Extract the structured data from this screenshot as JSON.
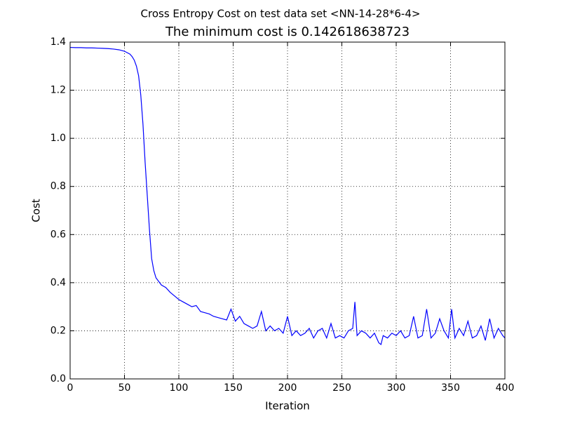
{
  "chart_data": {
    "type": "line",
    "suptitle": "Cross Entropy Cost on test data set <NN-14-28*6-4>",
    "title": "The minimum cost is 0.142618638723",
    "xlabel": "Iteration",
    "ylabel": "Cost",
    "color": "#0000ff",
    "grid": true,
    "xlim": [
      0,
      400
    ],
    "xticks": [
      0,
      50,
      100,
      150,
      200,
      250,
      300,
      350,
      400
    ],
    "ylim": [
      0,
      1.4
    ],
    "yticks": [
      {
        "value": 0,
        "label": "0.0"
      },
      0.2,
      0.4,
      0.6,
      0.8,
      {
        "value": 1,
        "label": "1.0"
      },
      1.2,
      1.4
    ],
    "x": [
      0,
      5,
      10,
      15,
      20,
      25,
      30,
      35,
      40,
      45,
      50,
      55,
      57,
      59,
      61,
      63,
      65,
      67,
      69,
      71,
      73,
      75,
      77,
      79,
      84,
      88,
      92,
      96,
      100,
      104,
      108,
      112,
      116,
      120,
      124,
      128,
      132,
      136,
      140,
      144,
      148,
      152,
      156,
      160,
      164,
      168,
      172,
      176,
      180,
      184,
      188,
      192,
      196,
      200,
      204,
      208,
      212,
      216,
      220,
      224,
      228,
      232,
      236,
      240,
      244,
      248,
      252,
      256,
      260,
      262,
      264,
      268,
      272,
      276,
      280,
      284,
      286,
      288,
      292,
      296,
      300,
      304,
      308,
      312,
      316,
      320,
      324,
      328,
      332,
      336,
      340,
      344,
      348,
      351,
      354,
      358,
      362,
      366,
      370,
      374,
      378,
      382,
      386,
      390,
      394,
      398,
      400
    ],
    "values": [
      1.378,
      1.377,
      1.377,
      1.376,
      1.376,
      1.375,
      1.374,
      1.373,
      1.371,
      1.368,
      1.362,
      1.35,
      1.34,
      1.325,
      1.3,
      1.26,
      1.18,
      1.06,
      0.9,
      0.76,
      0.62,
      0.5,
      0.45,
      0.42,
      0.39,
      0.38,
      0.36,
      0.345,
      0.33,
      0.32,
      0.31,
      0.3,
      0.305,
      0.28,
      0.275,
      0.27,
      0.26,
      0.255,
      0.25,
      0.245,
      0.29,
      0.24,
      0.26,
      0.23,
      0.22,
      0.21,
      0.22,
      0.28,
      0.2,
      0.22,
      0.2,
      0.21,
      0.19,
      0.26,
      0.18,
      0.2,
      0.18,
      0.19,
      0.21,
      0.17,
      0.2,
      0.21,
      0.17,
      0.23,
      0.17,
      0.18,
      0.17,
      0.2,
      0.21,
      0.32,
      0.18,
      0.2,
      0.19,
      0.17,
      0.19,
      0.15,
      0.143,
      0.18,
      0.17,
      0.19,
      0.18,
      0.2,
      0.17,
      0.18,
      0.26,
      0.17,
      0.18,
      0.29,
      0.17,
      0.19,
      0.25,
      0.2,
      0.17,
      0.29,
      0.17,
      0.21,
      0.18,
      0.24,
      0.17,
      0.18,
      0.22,
      0.16,
      0.25,
      0.17,
      0.21,
      0.18,
      0.17
    ]
  }
}
